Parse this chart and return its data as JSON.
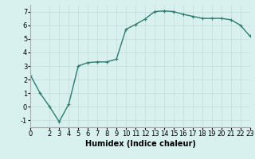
{
  "x": [
    0,
    1,
    2,
    3,
    4,
    5,
    6,
    7,
    8,
    9,
    10,
    11,
    12,
    13,
    14,
    15,
    16,
    17,
    18,
    19,
    20,
    21,
    22,
    23
  ],
  "y": [
    2.3,
    1.0,
    0.0,
    -1.1,
    0.2,
    3.0,
    3.25,
    3.3,
    3.3,
    3.5,
    5.7,
    6.05,
    6.45,
    7.0,
    7.05,
    7.0,
    6.8,
    6.65,
    6.5,
    6.5,
    6.5,
    6.4,
    6.0,
    5.2
  ],
  "line_color": "#2e7d6e",
  "marker": "+",
  "bg_color": "#d8f0ee",
  "grid_color": "#c8e0dc",
  "xlabel": "Humidex (Indice chaleur)",
  "xlim": [
    0,
    23
  ],
  "ylim": [
    -1.5,
    7.5
  ],
  "yticks": [
    -1,
    0,
    1,
    2,
    3,
    4,
    5,
    6,
    7
  ],
  "xticks": [
    0,
    2,
    3,
    4,
    5,
    6,
    7,
    8,
    9,
    10,
    11,
    12,
    13,
    14,
    15,
    16,
    17,
    18,
    19,
    20,
    21,
    22,
    23
  ],
  "xlabel_fontsize": 7,
  "tick_fontsize": 6,
  "marker_size": 3,
  "linewidth": 1.0
}
